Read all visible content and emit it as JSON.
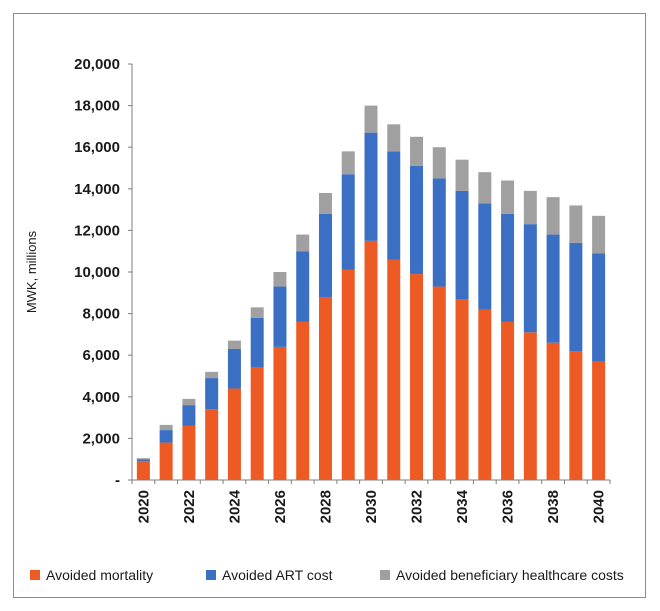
{
  "chart_data": {
    "type": "bar",
    "stacked": true,
    "title": "",
    "xlabel": "",
    "ylabel": "MWK, millions",
    "ylim": [
      0,
      20000
    ],
    "yticks": [
      0,
      2000,
      4000,
      6000,
      8000,
      10000,
      12000,
      14000,
      16000,
      18000,
      20000
    ],
    "ytick_labels": [
      "-",
      "2,000",
      "4,000",
      "6,000",
      "8,000",
      "10,000",
      "12,000",
      "14,000",
      "16,000",
      "18,000",
      "20,000"
    ],
    "categories": [
      "2020",
      "2021",
      "2022",
      "2023",
      "2024",
      "2025",
      "2026",
      "2027",
      "2028",
      "2029",
      "2030",
      "2031",
      "2032",
      "2033",
      "2034",
      "2035",
      "2036",
      "2037",
      "2038",
      "2039",
      "2040"
    ],
    "xtick_labels": [
      "2020",
      "",
      "2022",
      "",
      "2024",
      "",
      "2026",
      "",
      "2028",
      "",
      "2030",
      "",
      "2032",
      "",
      "2034",
      "",
      "2036",
      "",
      "2038",
      "",
      "2040"
    ],
    "legend_position": "bottom",
    "grid": false,
    "series": [
      {
        "name": "Avoided mortality",
        "color": "#ed5a23",
        "values": [
          900,
          1800,
          2600,
          3400,
          4400,
          5400,
          6400,
          7600,
          8800,
          10100,
          11500,
          10600,
          9900,
          9300,
          8700,
          8200,
          7600,
          7100,
          6600,
          6200,
          5700
        ]
      },
      {
        "name": "Avoided ART cost",
        "color": "#3a6fc4",
        "values": [
          100,
          600,
          1000,
          1500,
          1900,
          2400,
          2900,
          3400,
          4000,
          4600,
          5200,
          5200,
          5200,
          5200,
          5200,
          5100,
          5200,
          5200,
          5200,
          5200,
          5200
        ]
      },
      {
        "name": "Avoided beneficiary healthcare costs",
        "color": "#a0a0a0",
        "values": [
          50,
          250,
          300,
          300,
          400,
          500,
          700,
          800,
          1000,
          1100,
          1300,
          1300,
          1400,
          1500,
          1500,
          1500,
          1600,
          1600,
          1800,
          1800,
          1800
        ]
      }
    ]
  }
}
